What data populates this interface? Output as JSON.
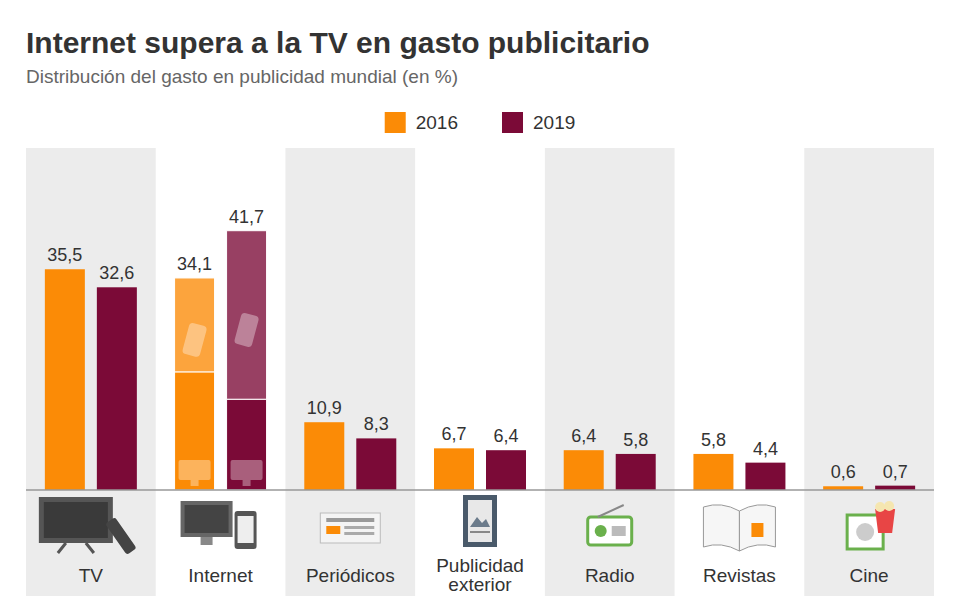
{
  "chart_data": {
    "type": "bar",
    "title": "Internet supera a la TV en gasto publicitario",
    "subtitle": "Distribución del gasto en publicidad mundial (en %)",
    "categories": [
      "TV",
      "Internet",
      "Periódicos",
      "Publicidad exterior",
      "Radio",
      "Revistas",
      "Cine"
    ],
    "series": [
      {
        "name": "2016",
        "color": "#fb8b06",
        "values": [
          35.5,
          34.1,
          10.9,
          6.7,
          6.4,
          5.8,
          0.6
        ],
        "value_labels": [
          "35,5",
          "34,1",
          "10,9",
          "6,7",
          "6,4",
          "5,8",
          "0,6"
        ],
        "breakdown": [
          null,
          [
            19.0,
            15.1
          ],
          null,
          null,
          null,
          null,
          null
        ]
      },
      {
        "name": "2019",
        "color": "#7b0a37",
        "values": [
          32.6,
          41.7,
          8.3,
          6.4,
          5.8,
          4.4,
          0.7
        ],
        "value_labels": [
          "32,6",
          "41,7",
          "8,3",
          "6,4",
          "5,8",
          "4,4",
          "0,7"
        ],
        "breakdown": [
          null,
          [
            14.6,
            27.1
          ],
          null,
          null,
          null,
          null,
          null
        ]
      }
    ],
    "ylim": [
      0,
      55
    ],
    "tick_labels": "x",
    "data_labels": true,
    "legend": "top"
  }
}
